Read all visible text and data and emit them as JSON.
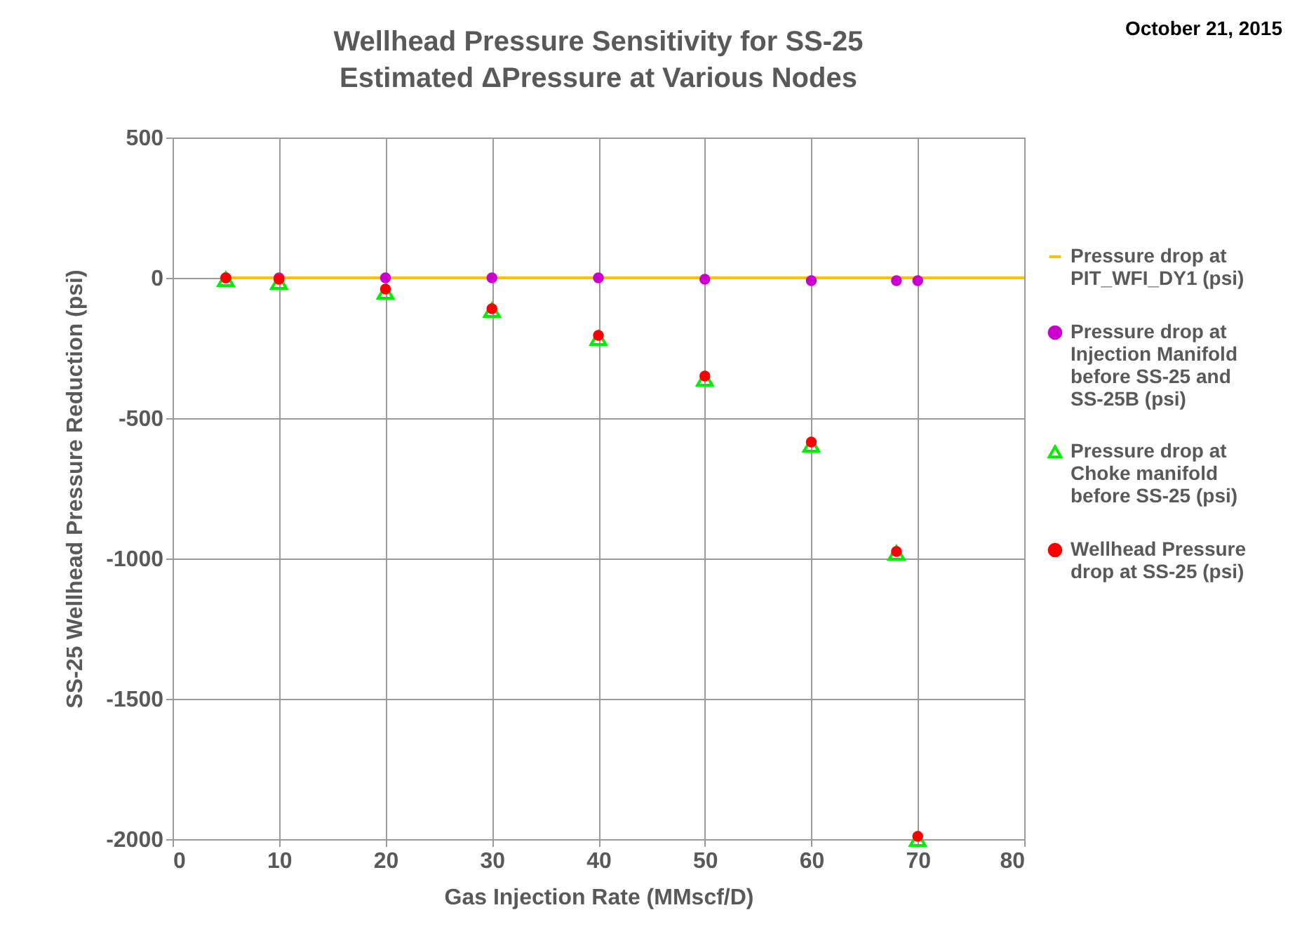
{
  "chart_data": {
    "type": "scatter",
    "title": "Wellhead Pressure Sensitivity for SS-25",
    "subtitle": "Estimated ΔPressure at Various Nodes",
    "xlabel": "Gas Injection Rate (MMscf/D)",
    "ylabel": "SS-25 Wellhead Pressure Reduction (psi)",
    "annotations": [
      "October 21, 2015"
    ],
    "series": [
      {
        "name": "Pressure drop at PIT_WFI_DY1 (psi)",
        "type": "line",
        "color": "#ffc000",
        "marker": "none",
        "x": [
          5,
          80
        ],
        "values": [
          0,
          0
        ]
      },
      {
        "name": "Pressure drop at Injection Manifold before SS-25 and SS-25B (psi)",
        "color": "#cc00cc",
        "marker": "circle",
        "x": [
          5,
          10,
          20,
          30,
          40,
          50,
          60,
          68,
          70
        ],
        "values": [
          0,
          0,
          0,
          0,
          0,
          -5,
          -10,
          -10,
          -10
        ]
      },
      {
        "name": "Pressure drop at Choke manifold before SS-25 (psi)",
        "color": "#00ee00",
        "marker": "triangle",
        "x": [
          5,
          10,
          20,
          30,
          40,
          50,
          60,
          68,
          70
        ],
        "values": [
          -5,
          -15,
          -50,
          -115,
          -215,
          -360,
          -595,
          -980,
          -2000
        ]
      },
      {
        "name": "Wellhead Pressure drop at SS-25 (psi)",
        "color": "#ff0000",
        "marker": "circle",
        "x": [
          5,
          10,
          20,
          30,
          40,
          50,
          60,
          68,
          70
        ],
        "values": [
          0,
          -5,
          -40,
          -110,
          -205,
          -350,
          -585,
          -975,
          -1990
        ]
      }
    ],
    "xlim": [
      0,
      80
    ],
    "xticks": [
      0,
      10,
      20,
      30,
      40,
      50,
      60,
      70,
      80
    ],
    "ylim": [
      -2000,
      500
    ],
    "yticks": [
      -2000,
      -1500,
      -1000,
      -500,
      0,
      500
    ],
    "grid": true,
    "legend": "right"
  }
}
